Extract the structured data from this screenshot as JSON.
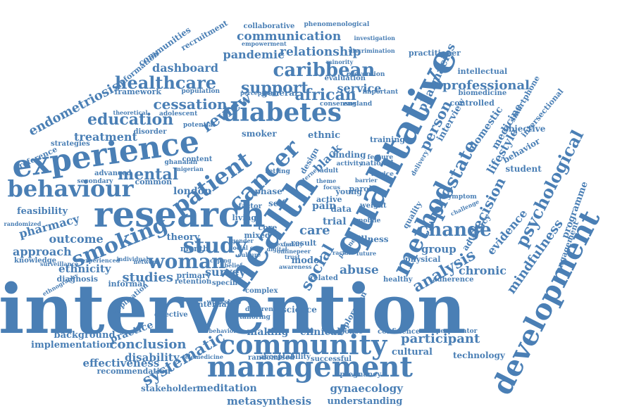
{
  "color": "#4a7fb5",
  "words": [
    "intervention",
    "management",
    "community",
    "research",
    "health",
    "qualitative",
    "development",
    "experience",
    "diabetes",
    "method",
    "cancer",
    "patient",
    "behaviour",
    "smoking",
    "study",
    "woman",
    "prostate",
    "change",
    "psychological",
    "caribbean",
    "healthcare",
    "support",
    "review",
    "cessation",
    "education",
    "mental",
    "african",
    "person",
    "decision",
    "professional",
    "analysis",
    "participant",
    "conclusion",
    "systematic",
    "mindfulness",
    "evidence",
    "chronic",
    "relationship",
    "communication",
    "pandemic",
    "dashboard",
    "service",
    "treatment",
    "endometriosis",
    "outcome",
    "pharmacy",
    "approach",
    "ethnicity",
    "studies",
    "survey",
    "social",
    "abuse",
    "gynaecology",
    "metasynthesis",
    "understanding",
    "meditation",
    "stakeholder",
    "disability",
    "effectiveness",
    "implementation",
    "background",
    "technology",
    "cultural",
    "lifestyle",
    "domestic",
    "medicine",
    "interview",
    "pharmacies",
    "practitioner",
    "intellectual",
    "biomedicine",
    "smartphone",
    "intersectional",
    "objective",
    "behavior",
    "student",
    "programme",
    "engagement",
    "advocacy",
    "group",
    "care",
    "trial",
    "london",
    "ethnic",
    "smoker",
    "black",
    "feasibility",
    "framework",
    "communities",
    "recruitment",
    "information",
    "collaborative",
    "phenomenological",
    "knowledge",
    "diagnosis",
    "randomized",
    "preference",
    "strategies",
    "disorder",
    "potential",
    "adolescent",
    "population",
    "theoretical",
    "general",
    "evaluation",
    "investigation",
    "discrimination",
    "empowerment",
    "consensus",
    "controlled",
    "randomised",
    "acceptability",
    "successful",
    "recommendation",
    "making",
    "clinical",
    "response",
    "confidence",
    "perpetrator",
    "practice",
    "informal",
    "internal",
    "primary",
    "retention",
    "specific",
    "application",
    "effective",
    "healthy",
    "adherence",
    "physical",
    "quality",
    "illness",
    "result",
    "model",
    "mixed",
    "theory",
    "month",
    "core",
    "self",
    "phase",
    "living",
    "factor",
    "pain",
    "active",
    "young",
    "data",
    "parole",
    "mobile",
    "weight",
    "national",
    "feature",
    "training",
    "advice",
    "delivery",
    "symptom",
    "challenge",
    "exploration",
    "science",
    "pregnancy",
    "telemedicine",
    "behavioral",
    "tailoring",
    "different",
    "complex",
    "related",
    "setting",
    "network",
    "workshop",
    "common",
    "advanced",
    "secondary",
    "content",
    "surveillance",
    "ghanaian",
    "nigerian",
    "minority",
    "england",
    "important",
    "prevention",
    "perception",
    "barrier",
    "design",
    "adult",
    "theme",
    "finding",
    "future",
    "partner",
    "racial",
    "focus",
    "activity",
    "internet",
    "ethnography",
    "experienced",
    "individual",
    "digital",
    "online",
    "trust",
    "sexual",
    "family",
    "culture",
    "gender",
    "social care",
    "peer",
    "coping",
    "belief",
    "awareness"
  ]
}
